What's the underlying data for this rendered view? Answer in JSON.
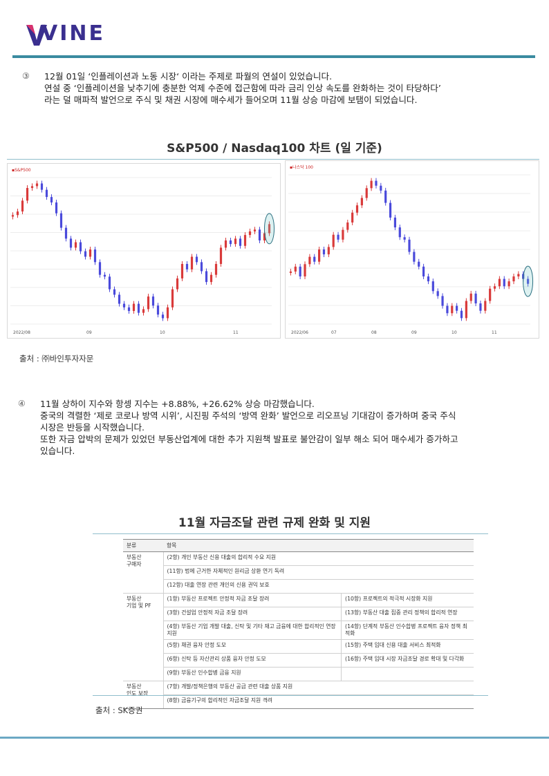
{
  "brand": {
    "logo_text": "VINE"
  },
  "section3": {
    "number": "③",
    "lines": [
      "12월 01일 ‘인플레이션과 노동 시장‘ 이라는 주제로 파월의 연설이 있었습니다.",
      "연설 중 ‘인플레이션을 낮추기에 충분한 억제 수준에 접근함에 따라 금리 인상 속도를 완화하는 것이 타당하다’",
      "라는 덜 매파적 발언으로 주식 및 채권 시장에 매수세가 들어오며 11월 상승 마감에 보탬이 되었습니다."
    ]
  },
  "chart_section": {
    "title": "S&P500 / Nasdaq100 차트 (일 기준)",
    "source": "출처 : ㈜바인투자자문"
  },
  "chart_data": [
    {
      "type": "candlestick",
      "legend": "S&P500",
      "x_tick_labels": [
        "2022/08",
        "09",
        "10",
        "11"
      ],
      "trend": [
        4130,
        4150,
        4210,
        4280,
        4290,
        4305,
        4270,
        4230,
        4200,
        4140,
        4060,
        4000,
        3950,
        3980,
        3930,
        3900,
        3940,
        3870,
        3800,
        3790,
        3720,
        3690,
        3640,
        3620,
        3600,
        3640,
        3590,
        3610,
        3680,
        3630,
        3580,
        3560,
        3620,
        3720,
        3780,
        3860,
        3830,
        3900,
        3870,
        3820,
        3760,
        3800,
        3860,
        3950,
        3990,
        3970,
        4000,
        3960,
        4020,
        4040,
        4050,
        3990,
        4030,
        4080
      ],
      "annotation": "last-candle-highlighted"
    },
    {
      "type": "candlestick",
      "legend": "나스닥 100",
      "x_tick_labels": [
        "2022/06",
        "07",
        "08",
        "09",
        "10",
        "11"
      ],
      "trend": [
        11800,
        11900,
        11700,
        11950,
        12100,
        12000,
        12250,
        12150,
        12300,
        12550,
        12450,
        12650,
        12800,
        13000,
        13150,
        13300,
        13500,
        13650,
        13550,
        13450,
        13200,
        12900,
        12700,
        12500,
        12450,
        12200,
        12000,
        11900,
        11700,
        11600,
        11400,
        11300,
        11100,
        10950,
        11100,
        11000,
        10850,
        11200,
        11350,
        11150,
        11000,
        11200,
        11450,
        11500,
        11650,
        11500,
        11600,
        11700,
        11750,
        11650,
        11550
      ],
      "annotation": "last-candle-highlighted"
    }
  ],
  "section4": {
    "number": "④",
    "lines": [
      "11월 상하이 지수와 항셍 지수는 +8.88%,  +26.62%   상승 마감했습니다.",
      "중국의 격렬한 ‘제로 코로나 방역 시위’, 시진핑 주석의 ‘방역 완화’ 발언으로 리오프닝 기대감이 증가하며  중국 주식",
      "시장은 반등을 시작했습니다.",
      "또한 자금 압박의 문제가 있었던 부동산업계에 대한 추가 지원책 발표로 불안감이 일부 해소 되어 매수세가 증가하고",
      "있습니다."
    ]
  },
  "table_section": {
    "title": "11월 자금조달 관련 규제 완화 및 지원",
    "source": "출처 : SK증권",
    "headers": [
      "분류",
      "항목"
    ],
    "groups": {
      "buyer": {
        "category": "부동산\n구매자",
        "rows": [
          "(2항) 개인 부동산 신용 대출의 합리적 수요 지원",
          "(11항) 법에 근거한 자체적인 원리금 상환 연기 독려",
          "(12항) 대출 연장 관련 개인의 신용 권익 보호"
        ]
      },
      "developer": {
        "category": "부동산\n기업 및 PF",
        "rows": [
          [
            "(1항) 부동산 프로젝트 안정적 자금 조달 장려",
            "(10항) 프로젝트의 적극적 시장화 지원"
          ],
          [
            "(3항) 건설업 안정적 자금 조달 장려",
            "(13항) 부동산 대출 집중 관리 정책의 합리적 연장"
          ],
          [
            "(4항) 부동산 기업 개발 대출, 신탁 및 기타 재고 금융에 대한 합리적인 연장 지원",
            "(14항) 단계적 부동산 인수합병 프로젝트 융자 정책 최적화"
          ],
          [
            "(5항) 채권 융자 안정 도모",
            "(15항) 주택 임대 신용 대출 서비스 최적화"
          ],
          [
            "(6항) 신탁 등 자산관리 상품 융자 안정 도모",
            "(16항) 주택 임대 시장 자금조달 경로 확대 및 다각화"
          ],
          [
            "(9항) 부동산 인수합병 금융 지원",
            ""
          ]
        ]
      },
      "delivery": {
        "category": "부동산\n인도 보장",
        "rows": [
          "(7항) 개발/정책은행의 부동산 공급 관련 대출 상품 지원",
          "(8항) 금융기구의 합리적인 자금조달 지원 격려"
        ]
      }
    }
  },
  "colors": {
    "accent": "#3a8ba0",
    "up": "#d93a3a",
    "down": "#4a4adb",
    "brand": "#3a2f8f"
  }
}
